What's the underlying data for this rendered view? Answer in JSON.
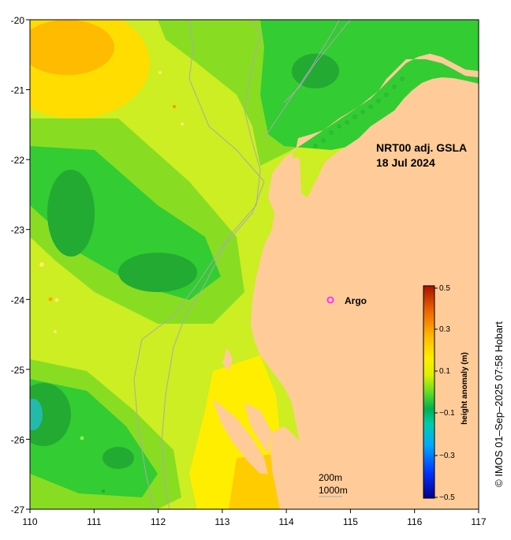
{
  "map": {
    "title_line1": "NRT00 adj. GSLA",
    "title_line2": "18 Jul 2024",
    "lon_ticks": [
      "110",
      "111",
      "112",
      "113",
      "114",
      "115",
      "116",
      "117"
    ],
    "lat_ticks": [
      "-20",
      "-21",
      "-22",
      "-23",
      "-24",
      "-25",
      "-26",
      "-27"
    ],
    "lon_range": [
      110,
      117
    ],
    "lat_range": [
      -27,
      -20
    ],
    "legend": {
      "argo_label": "Argo",
      "argo_marker_color": "#ff33ff"
    },
    "argo_float": {
      "lon": 114.7,
      "lat": -24.0
    },
    "contours": {
      "label_200": "200m",
      "label_1000": "1000m",
      "line_color": "#aaaaaa"
    },
    "land_color": "#ffcc99",
    "credit": "© IMOS 01–Sep–2025 07:58 Hobart"
  },
  "colorbar": {
    "title": "height anomaly (m)",
    "ticks": [
      "0.5",
      "0.3",
      "0.1",
      "−0.1",
      "−0.3",
      "−0.5"
    ],
    "range": [
      -0.5,
      0.5
    ]
  }
}
